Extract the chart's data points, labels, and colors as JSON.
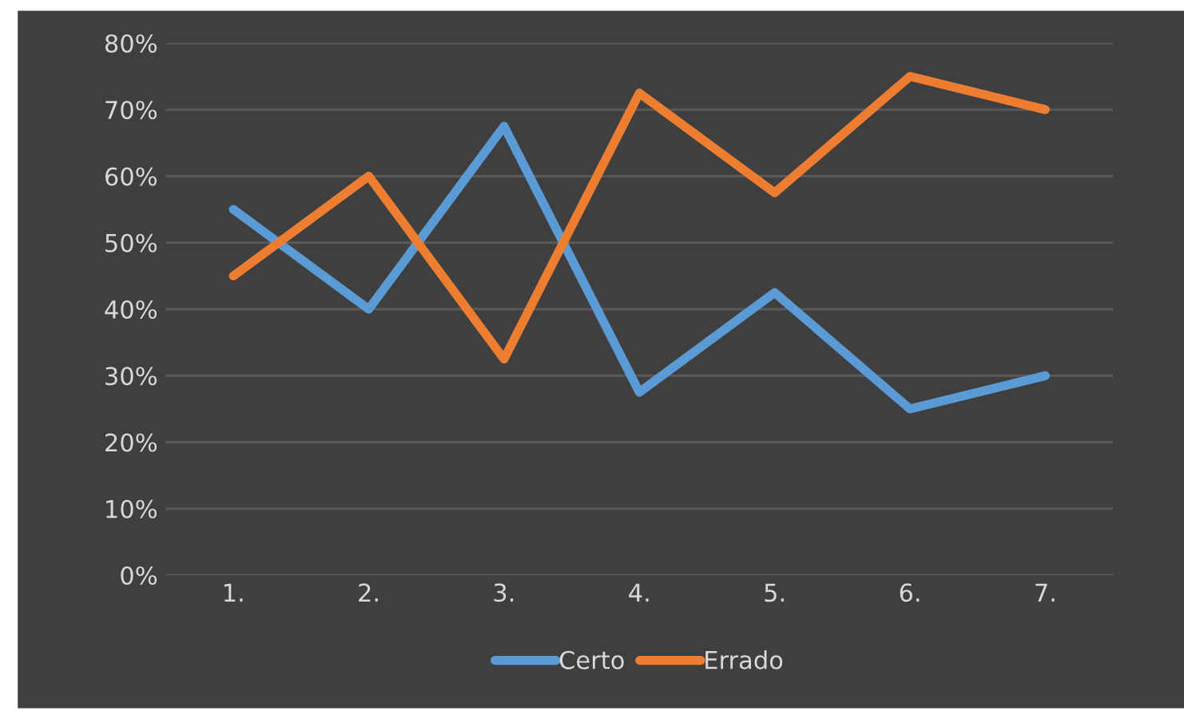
{
  "chart_data": {
    "type": "line",
    "categories": [
      "1.",
      "2.",
      "3.",
      "4.",
      "5.",
      "6.",
      "7."
    ],
    "series": [
      {
        "name": "Certo",
        "color": "#5b9bd5",
        "values": [
          55,
          40,
          67.5,
          27.5,
          42.5,
          25,
          30
        ]
      },
      {
        "name": "Errado",
        "color": "#ed7d31",
        "values": [
          45,
          60,
          32.5,
          72.5,
          57.5,
          75,
          70
        ]
      }
    ],
    "ylim": [
      0,
      80
    ],
    "yticks": [
      {
        "value": 0,
        "label": "0%"
      },
      {
        "value": 10,
        "label": "10%"
      },
      {
        "value": 20,
        "label": "20%"
      },
      {
        "value": 30,
        "label": "30%"
      },
      {
        "value": 40,
        "label": "40%"
      },
      {
        "value": 50,
        "label": "50%"
      },
      {
        "value": 60,
        "label": "60%"
      },
      {
        "value": 70,
        "label": "70%"
      },
      {
        "value": 80,
        "label": "80%"
      }
    ],
    "grid": "y",
    "legend": "bottom",
    "marker": "none",
    "line_style": "solid"
  }
}
